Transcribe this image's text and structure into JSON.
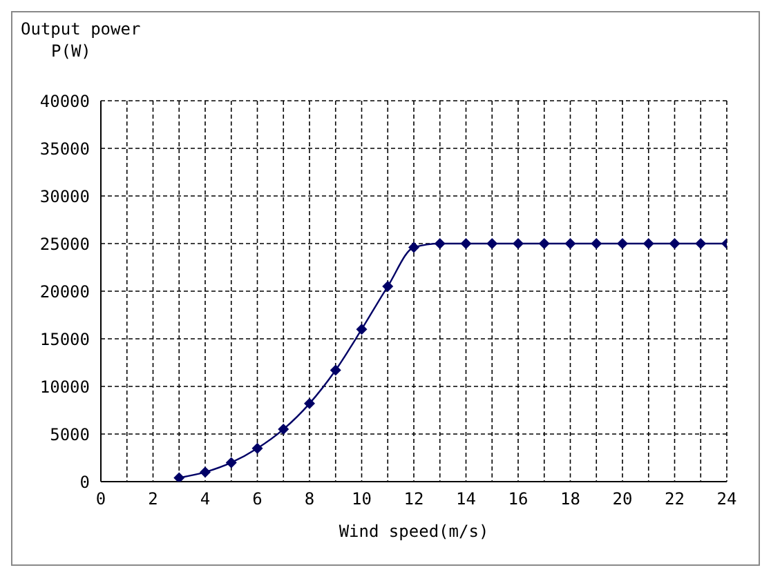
{
  "chart_data": {
    "type": "line",
    "xlabel": "Wind speed(m/s)",
    "ylabel": "Output power\nP(W)",
    "x": [
      3,
      4,
      5,
      6,
      7,
      8,
      9,
      10,
      11,
      12,
      13,
      14,
      15,
      16,
      17,
      18,
      19,
      20,
      21,
      22,
      23,
      24
    ],
    "series": [
      {
        "color": "#000066",
        "values": [
          400,
          1000,
          2000,
          3500,
          5500,
          8200,
          11700,
          16000,
          20500,
          24600,
          25000,
          25000,
          25000,
          25000,
          25000,
          25000,
          25000,
          25000,
          25000,
          25000,
          25000,
          25000
        ]
      }
    ],
    "xlim": [
      0,
      24
    ],
    "xticks": [
      0,
      {
        "value": 1,
        "label": null
      },
      2,
      {
        "value": 3,
        "label": null
      },
      4,
      {
        "value": 5,
        "label": null
      },
      6,
      {
        "value": 7,
        "label": null
      },
      8,
      {
        "value": 9,
        "label": null
      },
      10,
      {
        "value": 11,
        "label": null
      },
      12,
      {
        "value": 13,
        "label": null
      },
      14,
      {
        "value": 15,
        "label": null
      },
      16,
      {
        "value": 17,
        "label": null
      },
      18,
      {
        "value": 19,
        "label": null
      },
      20,
      {
        "value": 21,
        "label": null
      },
      22,
      {
        "value": 23,
        "label": null
      },
      24
    ],
    "ylim": [
      0,
      40000
    ],
    "yticks": [
      0,
      5000,
      10000,
      15000,
      20000,
      25000,
      30000,
      35000,
      40000
    ],
    "grid": true,
    "marker": "diamond",
    "line_style": "solid"
  }
}
